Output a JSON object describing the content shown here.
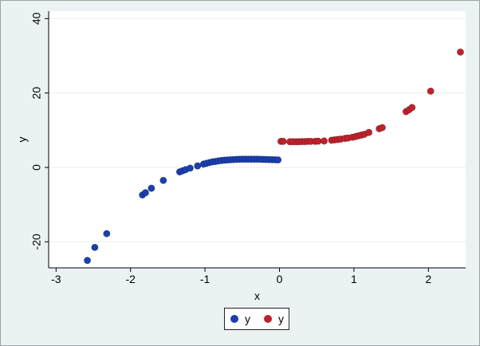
{
  "chart_data": {
    "type": "scatter",
    "xlabel": "x",
    "ylabel": "y",
    "xlim": [
      -3.1,
      2.5
    ],
    "ylim": [
      -27,
      42
    ],
    "xticks": [
      "-3",
      "-2",
      "-1",
      "0",
      "1",
      "2"
    ],
    "yticks": [
      "-20",
      "0",
      "20",
      "40"
    ],
    "grid": true,
    "legend_position": "bottom",
    "series": [
      {
        "name": "y",
        "color": "#1a3fb0",
        "points": [
          [
            -2.58,
            -25
          ],
          [
            -2.48,
            -21.5
          ],
          [
            -2.32,
            -17.8
          ],
          [
            -1.84,
            -7.4
          ],
          [
            -1.8,
            -6.8
          ],
          [
            -1.72,
            -5.6
          ],
          [
            -1.56,
            -3.5
          ],
          [
            -1.34,
            -1.2
          ],
          [
            -1.3,
            -0.9
          ],
          [
            -1.26,
            -0.6
          ],
          [
            -1.2,
            -0.2
          ],
          [
            -1.1,
            0.4
          ],
          [
            -1.02,
            0.9
          ],
          [
            -0.98,
            1.1
          ],
          [
            -0.94,
            1.3
          ],
          [
            -0.9,
            1.5
          ],
          [
            -0.86,
            1.6
          ],
          [
            -0.82,
            1.75
          ],
          [
            -0.78,
            1.85
          ],
          [
            -0.74,
            1.95
          ],
          [
            -0.7,
            2.0
          ],
          [
            -0.66,
            2.05
          ],
          [
            -0.62,
            2.1
          ],
          [
            -0.58,
            2.15
          ],
          [
            -0.54,
            2.18
          ],
          [
            -0.5,
            2.2
          ],
          [
            -0.46,
            2.2
          ],
          [
            -0.42,
            2.2
          ],
          [
            -0.38,
            2.2
          ],
          [
            -0.34,
            2.2
          ],
          [
            -0.3,
            2.2
          ],
          [
            -0.26,
            2.18
          ],
          [
            -0.22,
            2.15
          ],
          [
            -0.18,
            2.12
          ],
          [
            -0.14,
            2.1
          ],
          [
            -0.1,
            2.08
          ],
          [
            -0.06,
            2.05
          ],
          [
            -0.02,
            2.02
          ]
        ]
      },
      {
        "name": "y",
        "color": "#c0222c",
        "points": [
          [
            0.02,
            7.0
          ],
          [
            0.05,
            7.0
          ],
          [
            0.14,
            6.9
          ],
          [
            0.18,
            6.9
          ],
          [
            0.22,
            6.9
          ],
          [
            0.26,
            6.9
          ],
          [
            0.3,
            6.95
          ],
          [
            0.34,
            6.95
          ],
          [
            0.38,
            7.0
          ],
          [
            0.42,
            7.0
          ],
          [
            0.48,
            7.0
          ],
          [
            0.52,
            7.05
          ],
          [
            0.6,
            7.1
          ],
          [
            0.7,
            7.3
          ],
          [
            0.74,
            7.4
          ],
          [
            0.78,
            7.5
          ],
          [
            0.82,
            7.6
          ],
          [
            0.88,
            7.8
          ],
          [
            0.92,
            7.9
          ],
          [
            0.98,
            8.1
          ],
          [
            1.02,
            8.3
          ],
          [
            1.06,
            8.5
          ],
          [
            1.1,
            8.7
          ],
          [
            1.14,
            8.9
          ],
          [
            1.2,
            9.4
          ],
          [
            1.34,
            10.4
          ],
          [
            1.38,
            10.7
          ],
          [
            1.7,
            15.0
          ],
          [
            1.74,
            15.5
          ],
          [
            1.78,
            16.1
          ],
          [
            2.03,
            20.5
          ],
          [
            2.43,
            31.0
          ]
        ]
      }
    ]
  },
  "legend": {
    "items": [
      {
        "label": "y",
        "color": "#1a3fb0"
      },
      {
        "label": "y",
        "color": "#c0222c"
      }
    ]
  }
}
